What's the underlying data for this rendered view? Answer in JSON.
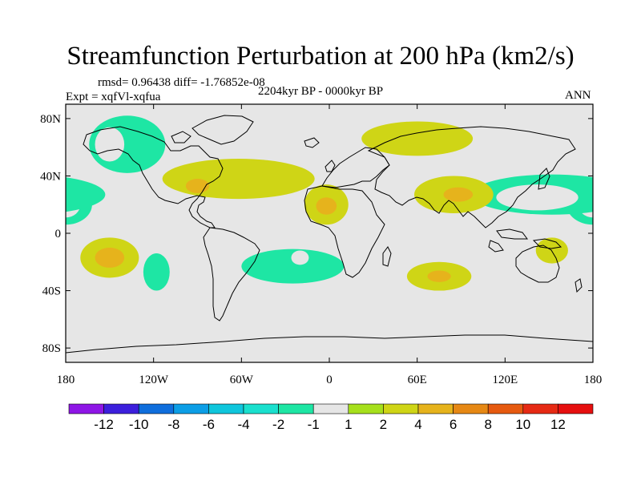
{
  "chart_data": {
    "type": "contour-map",
    "title": "Streamfunction Perturbation at 200 hPa (km2/s)",
    "stats_line": "rmsd= 0.96438 diff= -1.76852e-08",
    "experiment_label": "Expt = xqfVl-xqfua",
    "period_label": "2204kyr BP - 0000kyr BP",
    "season_label": "ANN",
    "x_axis": {
      "range": [
        -180,
        180
      ],
      "ticks": [
        {
          "value": -180,
          "label": "180"
        },
        {
          "value": -120,
          "label": "120W"
        },
        {
          "value": -60,
          "label": "60W"
        },
        {
          "value": 0,
          "label": "0"
        },
        {
          "value": 60,
          "label": "60E"
        },
        {
          "value": 120,
          "label": "120E"
        },
        {
          "value": 180,
          "label": "180"
        }
      ]
    },
    "y_axis": {
      "range": [
        -90,
        90
      ],
      "ticks": [
        {
          "value": 80,
          "label": "80N"
        },
        {
          "value": 40,
          "label": "40N"
        },
        {
          "value": 0,
          "label": "0"
        },
        {
          "value": -40,
          "label": "40S"
        },
        {
          "value": -80,
          "label": "80S"
        }
      ]
    },
    "levels": [
      -12,
      -10,
      -8,
      -6,
      -4,
      -2,
      -1,
      1,
      2,
      4,
      6,
      8,
      10,
      12
    ],
    "colorbar_labels": [
      "-12",
      "-10",
      "-8",
      "-6",
      "-4",
      "-2",
      "-1",
      "1",
      "2",
      "4",
      "6",
      "8",
      "10",
      "12"
    ],
    "colors": [
      "#8e16e6",
      "#3c1fdc",
      "#0f6edc",
      "#0c9ee6",
      "#0fc6dc",
      "#1ae0ce",
      "#1ee6a4",
      "#e6e6e6",
      "#a6e01c",
      "#cfd516",
      "#e6b31c",
      "#e68814",
      "#e65a10",
      "#e62a14",
      "#e60f0f"
    ],
    "background_color": "#e6e6e6",
    "anomalies": [
      {
        "name": "north-pacific-high",
        "lon": -138,
        "lat": 62,
        "rlon": 26,
        "rlat": 20,
        "level": -2
      },
      {
        "name": "north-pacific-core",
        "lon": -150,
        "lat": 62,
        "rlon": 10,
        "rlat": 12,
        "level": -1
      },
      {
        "name": "north-atlantic-ridge",
        "lon": -62,
        "lat": 38,
        "rlon": 52,
        "rlat": 14,
        "level": 2
      },
      {
        "name": "gulf-of-mexico-core",
        "lon": -90,
        "lat": 33,
        "rlon": 8,
        "rlat": 5,
        "level": 4
      },
      {
        "name": "tropical-east-pacific",
        "lon": -180,
        "lat": 20,
        "rlon": 18,
        "rlat": 14,
        "level": -2
      },
      {
        "name": "tropical-east-pacific-core",
        "lon": -180,
        "lat": 20,
        "rlon": 10,
        "rlat": 9,
        "level": -1
      },
      {
        "name": "west-africa",
        "lon": -2,
        "lat": 20,
        "rlon": 15,
        "rlat": 14,
        "level": 2
      },
      {
        "name": "west-africa-core",
        "lon": -2,
        "lat": 19,
        "rlon": 7,
        "rlat": 6,
        "level": 4
      },
      {
        "name": "siberia",
        "lon": 60,
        "lat": 66,
        "rlon": 38,
        "rlat": 12,
        "level": 2
      },
      {
        "name": "north-west-pacific",
        "lon": 152,
        "lat": 27,
        "rlon": 55,
        "rlat": 14,
        "level": -2
      },
      {
        "name": "north-west-pacific-core",
        "lon": 142,
        "lat": 25,
        "rlon": 28,
        "rlat": 9,
        "level": -1
      },
      {
        "name": "india",
        "lon": 85,
        "lat": 27,
        "rlon": 27,
        "rlat": 13,
        "level": 2
      },
      {
        "name": "india-core",
        "lon": 88,
        "lat": 27,
        "rlon": 10,
        "rlat": 5,
        "level": 4
      },
      {
        "name": "south-east-pacific",
        "lon": -150,
        "lat": -17,
        "rlon": 20,
        "rlat": 14,
        "level": 2
      },
      {
        "name": "south-east-pacific-core",
        "lon": -150,
        "lat": -17,
        "rlon": 10,
        "rlat": 7,
        "level": 4
      },
      {
        "name": "south-pacific-west",
        "lon": -118,
        "lat": -27,
        "rlon": 9,
        "rlat": 13,
        "level": -2
      },
      {
        "name": "south-atlantic",
        "lon": -25,
        "lat": -23,
        "rlon": 35,
        "rlat": 12,
        "level": -2
      },
      {
        "name": "south-atlantic-core",
        "lon": -20,
        "lat": -17,
        "rlon": 6,
        "rlat": 5,
        "level": -1
      },
      {
        "name": "south-indian-ocean",
        "lon": 75,
        "lat": -30,
        "rlon": 22,
        "rlat": 10,
        "level": 2
      },
      {
        "name": "south-indian-ocean-core",
        "lon": 75,
        "lat": -30,
        "rlon": 8,
        "rlat": 4,
        "level": 4
      },
      {
        "name": "australia",
        "lon": 152,
        "lat": -12,
        "rlon": 11,
        "rlat": 9,
        "level": 2
      }
    ]
  }
}
